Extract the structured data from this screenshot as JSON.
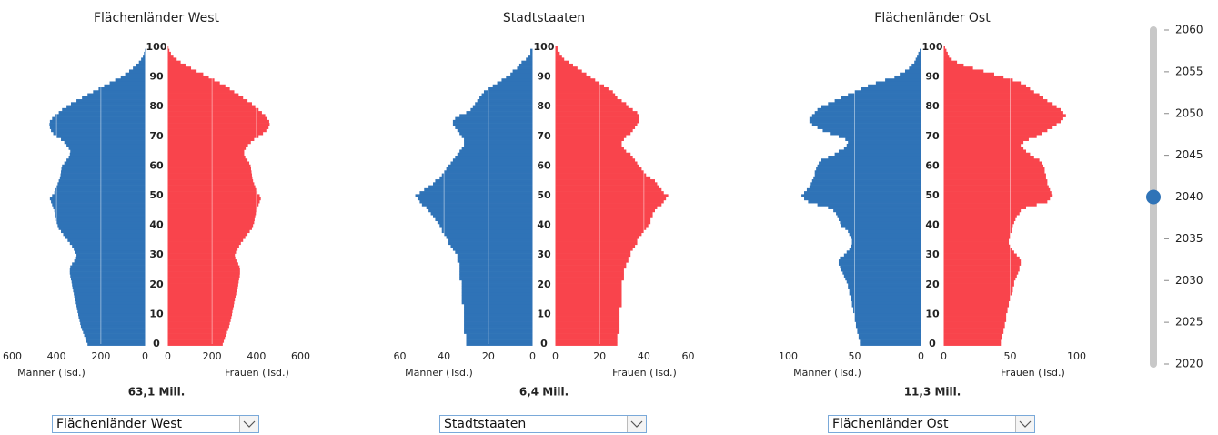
{
  "chart_data": [
    {
      "type": "pyramid",
      "title": "Flächenländer West",
      "annotation": "63,1 Mill.",
      "dropdown": "Flächenländer West",
      "ages": [
        0,
        1,
        2,
        3,
        4,
        5,
        6,
        7,
        8,
        9,
        10,
        11,
        12,
        13,
        14,
        15,
        16,
        17,
        18,
        19,
        20,
        21,
        22,
        23,
        24,
        25,
        26,
        27,
        28,
        29,
        30,
        31,
        32,
        33,
        34,
        35,
        36,
        37,
        38,
        39,
        40,
        41,
        42,
        43,
        44,
        45,
        46,
        47,
        48,
        49,
        50,
        51,
        52,
        53,
        54,
        55,
        56,
        57,
        58,
        59,
        60,
        61,
        62,
        63,
        64,
        65,
        66,
        67,
        68,
        69,
        70,
        71,
        72,
        73,
        74,
        75,
        76,
        77,
        78,
        79,
        80,
        81,
        82,
        83,
        84,
        85,
        86,
        87,
        88,
        89,
        90,
        91,
        92,
        93,
        94,
        95,
        96,
        97,
        98,
        99,
        100
      ],
      "ylim": [
        0,
        100
      ],
      "yticks": [
        0,
        10,
        20,
        30,
        40,
        50,
        60,
        70,
        80,
        90,
        100
      ],
      "xlim": [
        0,
        600
      ],
      "xticks": [
        0,
        200,
        400,
        600
      ],
      "grid": true,
      "series": [
        {
          "name": "Männer (Tsd.)",
          "color": "#2f73b7",
          "side": "left",
          "values": [
            260,
            265,
            270,
            275,
            280,
            285,
            290,
            293,
            296,
            300,
            302,
            305,
            308,
            310,
            313,
            316,
            320,
            322,
            325,
            328,
            330,
            332,
            335,
            338,
            340,
            340,
            338,
            330,
            320,
            312,
            310,
            315,
            322,
            330,
            340,
            350,
            360,
            370,
            380,
            390,
            395,
            400,
            402,
            405,
            408,
            410,
            415,
            420,
            425,
            430,
            420,
            410,
            405,
            400,
            395,
            390,
            385,
            382,
            380,
            378,
            375,
            365,
            355,
            345,
            340,
            338,
            345,
            355,
            365,
            380,
            400,
            415,
            425,
            430,
            432,
            430,
            420,
            405,
            390,
            375,
            355,
            335,
            310,
            285,
            260,
            235,
            210,
            185,
            160,
            135,
            110,
            90,
            72,
            55,
            40,
            28,
            18,
            10,
            5,
            2,
            0
          ]
        },
        {
          "name": "Frauen (Tsd.)",
          "color": "#f9444c",
          "side": "right",
          "values": [
            248,
            253,
            258,
            262,
            267,
            272,
            277,
            280,
            284,
            287,
            290,
            292,
            295,
            298,
            300,
            303,
            306,
            309,
            312,
            316,
            318,
            320,
            322,
            325,
            326,
            326,
            324,
            318,
            310,
            305,
            303,
            308,
            315,
            322,
            330,
            340,
            350,
            360,
            370,
            380,
            385,
            390,
            392,
            395,
            398,
            400,
            405,
            410,
            415,
            420,
            415,
            405,
            400,
            395,
            390,
            385,
            382,
            380,
            378,
            376,
            374,
            368,
            360,
            350,
            345,
            345,
            352,
            362,
            375,
            390,
            410,
            430,
            445,
            455,
            460,
            458,
            450,
            440,
            425,
            410,
            395,
            380,
            360,
            340,
            320,
            300,
            280,
            260,
            235,
            210,
            185,
            160,
            130,
            105,
            80,
            58,
            40,
            25,
            14,
            7,
            3
          ]
        }
      ]
    },
    {
      "type": "pyramid",
      "title": "Stadtstaaten",
      "annotation": "6,4 Mill.",
      "dropdown": "Stadtstaaten",
      "ages": [
        0,
        1,
        2,
        3,
        4,
        5,
        6,
        7,
        8,
        9,
        10,
        11,
        12,
        13,
        14,
        15,
        16,
        17,
        18,
        19,
        20,
        21,
        22,
        23,
        24,
        25,
        26,
        27,
        28,
        29,
        30,
        31,
        32,
        33,
        34,
        35,
        36,
        37,
        38,
        39,
        40,
        41,
        42,
        43,
        44,
        45,
        46,
        47,
        48,
        49,
        50,
        51,
        52,
        53,
        54,
        55,
        56,
        57,
        58,
        59,
        60,
        61,
        62,
        63,
        64,
        65,
        66,
        67,
        68,
        69,
        70,
        71,
        72,
        73,
        74,
        75,
        76,
        77,
        78,
        79,
        80,
        81,
        82,
        83,
        84,
        85,
        86,
        87,
        88,
        89,
        90,
        91,
        92,
        93,
        94,
        95,
        96,
        97,
        98,
        99,
        100
      ],
      "ylim": [
        0,
        100
      ],
      "yticks": [
        0,
        10,
        20,
        30,
        40,
        50,
        60,
        70,
        80,
        90,
        100
      ],
      "xlim": [
        0,
        60
      ],
      "xticks": [
        0,
        20,
        40,
        60
      ],
      "grid": true,
      "series": [
        {
          "name": "Männer (Tsd.)",
          "color": "#2f73b7",
          "side": "left",
          "values": [
            30,
            30,
            30,
            30,
            31,
            31,
            31,
            31,
            31,
            31,
            31,
            31,
            31,
            31,
            32,
            32,
            32,
            32,
            32,
            32,
            32,
            32,
            33,
            33,
            33,
            33,
            33,
            33,
            34,
            34,
            34,
            35,
            36,
            37,
            38,
            38,
            39,
            40,
            41,
            41,
            42,
            43,
            44,
            45,
            46,
            47,
            48,
            50,
            51,
            52,
            53,
            51,
            49,
            47,
            45,
            44,
            42,
            41,
            40,
            39,
            38,
            37,
            36,
            35,
            34,
            33,
            32,
            31,
            31,
            31,
            32,
            33,
            34,
            35,
            36,
            36,
            35,
            33,
            30,
            28,
            27,
            26,
            25,
            24,
            23,
            22,
            20,
            18,
            16,
            14,
            12,
            10,
            9,
            7,
            6,
            5,
            3,
            2,
            1,
            1,
            0
          ]
        },
        {
          "name": "Frauen (Tsd.)",
          "color": "#f9444c",
          "side": "right",
          "values": [
            28,
            28,
            28,
            28,
            29,
            29,
            29,
            29,
            29,
            29,
            29,
            29,
            29,
            30,
            30,
            30,
            30,
            30,
            30,
            30,
            30,
            30,
            31,
            31,
            31,
            31,
            32,
            32,
            33,
            33,
            34,
            34,
            35,
            36,
            37,
            37,
            38,
            39,
            40,
            41,
            42,
            43,
            43,
            44,
            44,
            45,
            46,
            48,
            49,
            50,
            51,
            49,
            48,
            47,
            46,
            45,
            43,
            41,
            40,
            39,
            38,
            37,
            36,
            35,
            34,
            32,
            31,
            30,
            30,
            31,
            32,
            34,
            35,
            36,
            37,
            38,
            38,
            38,
            37,
            35,
            33,
            32,
            30,
            28,
            27,
            26,
            24,
            22,
            20,
            18,
            16,
            14,
            12,
            10,
            8,
            6,
            4,
            3,
            2,
            1,
            1
          ]
        }
      ]
    },
    {
      "type": "pyramid",
      "title": "Flächenländer Ost",
      "annotation": "11,3 Mill.",
      "dropdown": "Flächenländer Ost",
      "ages": [
        0,
        1,
        2,
        3,
        4,
        5,
        6,
        7,
        8,
        9,
        10,
        11,
        12,
        13,
        14,
        15,
        16,
        17,
        18,
        19,
        20,
        21,
        22,
        23,
        24,
        25,
        26,
        27,
        28,
        29,
        30,
        31,
        32,
        33,
        34,
        35,
        36,
        37,
        38,
        39,
        40,
        41,
        42,
        43,
        44,
        45,
        46,
        47,
        48,
        49,
        50,
        51,
        52,
        53,
        54,
        55,
        56,
        57,
        58,
        59,
        60,
        61,
        62,
        63,
        64,
        65,
        66,
        67,
        68,
        69,
        70,
        71,
        72,
        73,
        74,
        75,
        76,
        77,
        78,
        79,
        80,
        81,
        82,
        83,
        84,
        85,
        86,
        87,
        88,
        89,
        90,
        91,
        92,
        93,
        94,
        95,
        96,
        97,
        98,
        99,
        100
      ],
      "ylim": [
        0,
        100
      ],
      "yticks": [
        0,
        10,
        20,
        30,
        40,
        50,
        60,
        70,
        80,
        90,
        100
      ],
      "xlim": [
        0,
        100
      ],
      "xticks": [
        0,
        50,
        100
      ],
      "grid": true,
      "series": [
        {
          "name": "Männer (Tsd.)",
          "color": "#2f73b7",
          "side": "left",
          "values": [
            46,
            46,
            47,
            47,
            48,
            48,
            49,
            49,
            50,
            50,
            50,
            51,
            51,
            52,
            52,
            53,
            53,
            54,
            54,
            55,
            55,
            56,
            57,
            58,
            59,
            60,
            61,
            62,
            62,
            61,
            58,
            56,
            54,
            53,
            52,
            52,
            53,
            54,
            55,
            57,
            60,
            61,
            62,
            63,
            64,
            66,
            70,
            78,
            85,
            88,
            90,
            88,
            86,
            84,
            83,
            82,
            81,
            80,
            80,
            79,
            78,
            77,
            75,
            70,
            65,
            62,
            58,
            56,
            55,
            57,
            62,
            68,
            74,
            78,
            82,
            84,
            84,
            82,
            80,
            78,
            75,
            70,
            65,
            60,
            55,
            50,
            45,
            40,
            34,
            27,
            20,
            16,
            12,
            9,
            7,
            5,
            4,
            3,
            2,
            1,
            0
          ]
        },
        {
          "name": "Frauen (Tsd.)",
          "color": "#f9444c",
          "side": "right",
          "values": [
            43,
            43,
            44,
            44,
            45,
            45,
            46,
            46,
            47,
            47,
            47,
            48,
            48,
            49,
            49,
            50,
            50,
            51,
            52,
            52,
            53,
            53,
            54,
            55,
            56,
            57,
            57,
            58,
            58,
            57,
            55,
            53,
            51,
            50,
            49,
            49,
            50,
            50,
            51,
            51,
            52,
            53,
            54,
            55,
            57,
            58,
            62,
            70,
            78,
            80,
            82,
            81,
            80,
            79,
            78,
            78,
            77,
            77,
            76,
            76,
            75,
            74,
            72,
            68,
            65,
            62,
            60,
            58,
            60,
            64,
            70,
            74,
            78,
            82,
            85,
            88,
            90,
            92,
            90,
            88,
            85,
            82,
            78,
            75,
            72,
            68,
            65,
            62,
            58,
            52,
            45,
            38,
            30,
            22,
            15,
            10,
            6,
            4,
            3,
            2,
            1
          ]
        }
      ]
    }
  ],
  "slider": {
    "range": [
      2020,
      2060
    ],
    "ticks": [
      2020,
      2025,
      2030,
      2035,
      2040,
      2045,
      2050,
      2055,
      2060
    ],
    "value": 2040
  }
}
